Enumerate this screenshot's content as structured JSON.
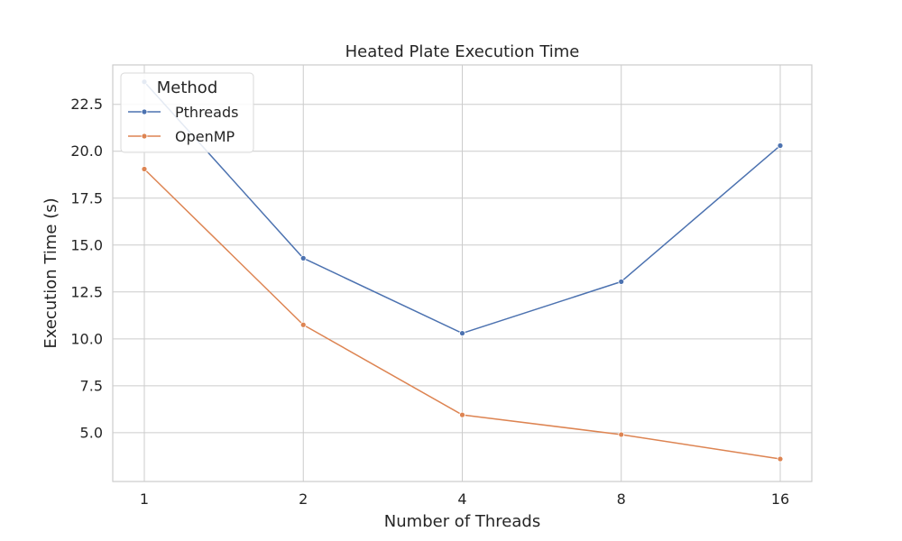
{
  "chart_data": {
    "type": "line",
    "title": "Heated Plate Execution Time",
    "xlabel": "Number of Threads",
    "ylabel": "Execution Time (s)",
    "categories": [
      "1",
      "2",
      "4",
      "8",
      "16"
    ],
    "yticks": [
      "5.0",
      "7.5",
      "10.0",
      "12.5",
      "15.0",
      "17.5",
      "20.0",
      "22.5"
    ],
    "ylim": [
      2.4,
      24.6
    ],
    "grid": true,
    "legend": {
      "title": "Method",
      "placement": "top-left"
    },
    "series": [
      {
        "name": "Pthreads",
        "color": "#4c72b0",
        "values": [
          23.7,
          14.3,
          10.3,
          13.05,
          20.3
        ]
      },
      {
        "name": "OpenMP",
        "color": "#dd8452",
        "values": [
          19.05,
          10.75,
          5.95,
          4.9,
          3.6
        ]
      }
    ]
  }
}
